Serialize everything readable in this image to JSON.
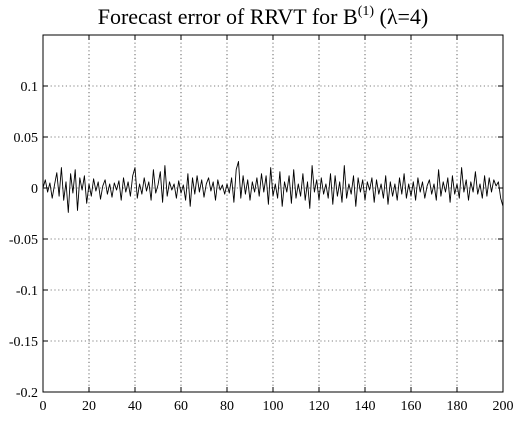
{
  "chart_data": {
    "type": "line",
    "title": {
      "prefix": "Forecast error of RRVT for B",
      "superscript": "(1)",
      "suffix": " (λ=4)"
    },
    "xlabel": "",
    "ylabel": "",
    "xlim": [
      0,
      200
    ],
    "ylim": [
      -0.2,
      0.15
    ],
    "xticks": [
      0,
      20,
      40,
      60,
      80,
      100,
      120,
      140,
      160,
      180,
      200
    ],
    "xtick_labels": [
      "0",
      "20",
      "40",
      "60",
      "80",
      "100",
      "120",
      "140",
      "160",
      "180",
      "200"
    ],
    "yticks": [
      -0.2,
      -0.15,
      -0.1,
      -0.05,
      0,
      0.05,
      0.1
    ],
    "ytick_labels": [
      "-0.2",
      "-0.15",
      "-0.1",
      "-0.05",
      "0",
      "0.05",
      "0.1"
    ],
    "grid": true,
    "grid_style": "dotted",
    "line_color": "#000000",
    "series": [
      {
        "values": [
          0.0,
          0.008,
          -0.004,
          0.005,
          -0.01,
          0.003,
          0.015,
          -0.008,
          0.02,
          -0.012,
          0.006,
          -0.024,
          0.014,
          -0.005,
          0.018,
          -0.022,
          0.01,
          -0.002,
          0.012,
          -0.015,
          0.004,
          -0.008,
          0.009,
          -0.003,
          0.006,
          -0.011,
          0.002,
          0.008,
          -0.006,
          0.004,
          -0.009,
          0.005,
          -0.002,
          0.007,
          -0.012,
          0.01,
          -0.004,
          0.006,
          -0.008,
          0.012,
          0.02,
          -0.01,
          0.004,
          -0.006,
          0.01,
          -0.003,
          0.006,
          -0.012,
          0.018,
          -0.005,
          0.003,
          0.016,
          -0.014,
          0.022,
          -0.008,
          0.006,
          -0.002,
          0.004,
          -0.01,
          0.007,
          -0.005,
          0.003,
          -0.012,
          0.014,
          -0.018,
          0.01,
          -0.006,
          0.012,
          -0.004,
          0.008,
          -0.009,
          0.004,
          0.01,
          -0.003,
          0.006,
          -0.012,
          0.008,
          -0.002,
          0.003,
          -0.006,
          0.004,
          -0.005,
          0.01,
          -0.014,
          0.018,
          0.026,
          -0.01,
          0.012,
          -0.006,
          0.008,
          -0.012,
          0.006,
          -0.004,
          0.01,
          -0.008,
          0.014,
          -0.004,
          0.012,
          -0.016,
          0.02,
          -0.008,
          0.004,
          -0.01,
          0.016,
          -0.018,
          0.006,
          -0.004,
          0.012,
          -0.015,
          0.018,
          -0.01,
          0.004,
          -0.008,
          0.014,
          -0.012,
          0.006,
          -0.02,
          0.022,
          -0.004,
          0.008,
          -0.012,
          0.01,
          -0.006,
          0.004,
          -0.01,
          0.014,
          -0.016,
          0.012,
          -0.008,
          0.006,
          -0.014,
          0.022,
          -0.01,
          0.004,
          -0.006,
          0.012,
          -0.018,
          0.01,
          -0.004,
          0.008,
          -0.012,
          0.006,
          -0.002,
          0.01,
          -0.014,
          0.008,
          -0.006,
          0.004,
          -0.01,
          0.012,
          -0.016,
          0.006,
          -0.008,
          0.004,
          -0.012,
          0.01,
          -0.006,
          0.014,
          -0.01,
          0.004,
          -0.008,
          0.006,
          -0.012,
          0.01,
          -0.004,
          0.006,
          -0.01,
          0.002,
          0.008,
          -0.006,
          0.004,
          -0.012,
          0.018,
          -0.008,
          0.006,
          -0.004,
          0.01,
          -0.014,
          0.012,
          -0.006,
          0.004,
          -0.01,
          0.02,
          -0.004,
          0.008,
          -0.012,
          0.006,
          -0.004,
          0.016,
          -0.006,
          0.004,
          -0.01,
          0.012,
          -0.008,
          0.01,
          -0.004,
          0.008,
          0.002,
          0.006,
          -0.01,
          -0.018
        ]
      }
    ]
  }
}
